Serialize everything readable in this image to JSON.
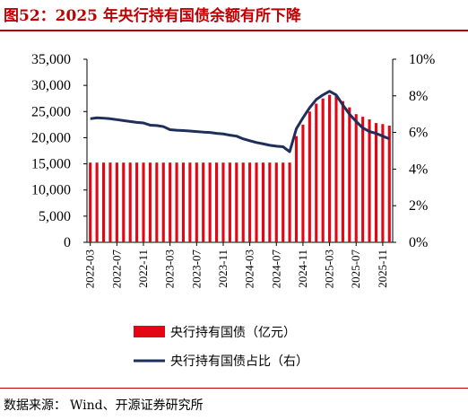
{
  "title": "图52：2025 年央行持有国债余额有所下降",
  "source": {
    "label": "数据来源：",
    "text": "Wind、开源证券研究所"
  },
  "colors": {
    "bar": "#e30613",
    "line": "#1f2f5a",
    "title": "#c00000"
  },
  "chart_data": {
    "type": "bar+line",
    "x_tick_labels": [
      "2022-03",
      "2022-07",
      "2022-11",
      "2023-03",
      "2023-07",
      "2023-11",
      "2024-03",
      "2024-07",
      "2024-11",
      "2025-03",
      "2025-07",
      "2025-11"
    ],
    "left_axis": {
      "ticks": [
        "0",
        "5,000",
        "10,000",
        "15,000",
        "20,000",
        "25,000",
        "30,000",
        "35,000"
      ],
      "ylim": [
        0,
        35000
      ]
    },
    "right_axis": {
      "ticks": [
        "0%",
        "2%",
        "4%",
        "6%",
        "8%",
        "10%"
      ],
      "ylim": [
        0,
        10
      ]
    },
    "legend": [
      "央行持有国债（亿元）",
      "央行持有国债占比（右）"
    ],
    "series": [
      {
        "name": "央行持有国债（亿元）",
        "type": "bar",
        "axis": "left",
        "values": [
          15240,
          15240,
          15240,
          15240,
          15240,
          15240,
          15240,
          15240,
          15240,
          15240,
          15240,
          15240,
          15240,
          15240,
          15240,
          15240,
          15240,
          15240,
          15240,
          15240,
          15240,
          15240,
          15240,
          15240,
          15240,
          15240,
          15240,
          15240,
          15240,
          15240,
          15240,
          20300,
          22500,
          25000,
          26500,
          27500,
          28200,
          28000,
          27000,
          25800,
          24500,
          24000,
          23500,
          22800,
          22600,
          22300
        ]
      },
      {
        "name": "央行持有国债占比（右）",
        "type": "line",
        "axis": "right",
        "values": [
          6.75,
          6.8,
          6.78,
          6.75,
          6.7,
          6.65,
          6.6,
          6.55,
          6.52,
          6.4,
          6.38,
          6.32,
          6.15,
          6.12,
          6.1,
          6.08,
          6.05,
          6.02,
          6.0,
          5.95,
          5.92,
          5.85,
          5.8,
          5.65,
          5.55,
          5.45,
          5.38,
          5.3,
          5.25,
          5.22,
          4.95,
          6.2,
          6.8,
          7.35,
          7.8,
          8.05,
          8.25,
          8.05,
          7.5,
          7.0,
          6.6,
          6.25,
          6.05,
          5.95,
          5.8,
          5.65
        ]
      }
    ],
    "grid": false
  }
}
